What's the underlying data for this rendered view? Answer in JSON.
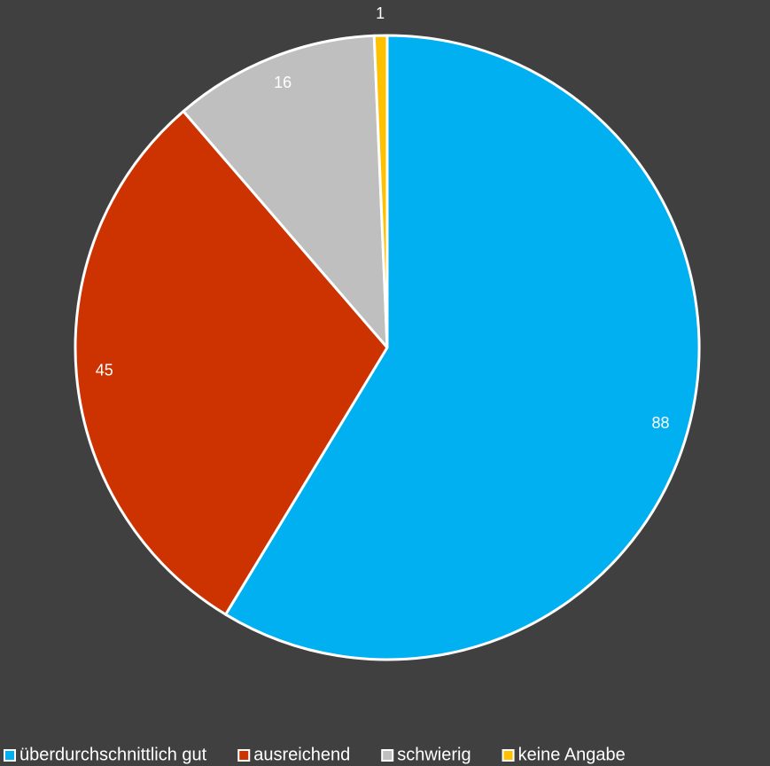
{
  "chart_data": {
    "type": "pie",
    "categories": [
      "überdurchschnittlich gut",
      "ausreichend",
      "schwierig",
      "keine Angabe"
    ],
    "values": [
      88,
      45,
      16,
      1
    ],
    "colors": [
      "#00b0f0",
      "#cc3300",
      "#bfbfbf",
      "#ffc000"
    ],
    "legend": "bottom"
  }
}
